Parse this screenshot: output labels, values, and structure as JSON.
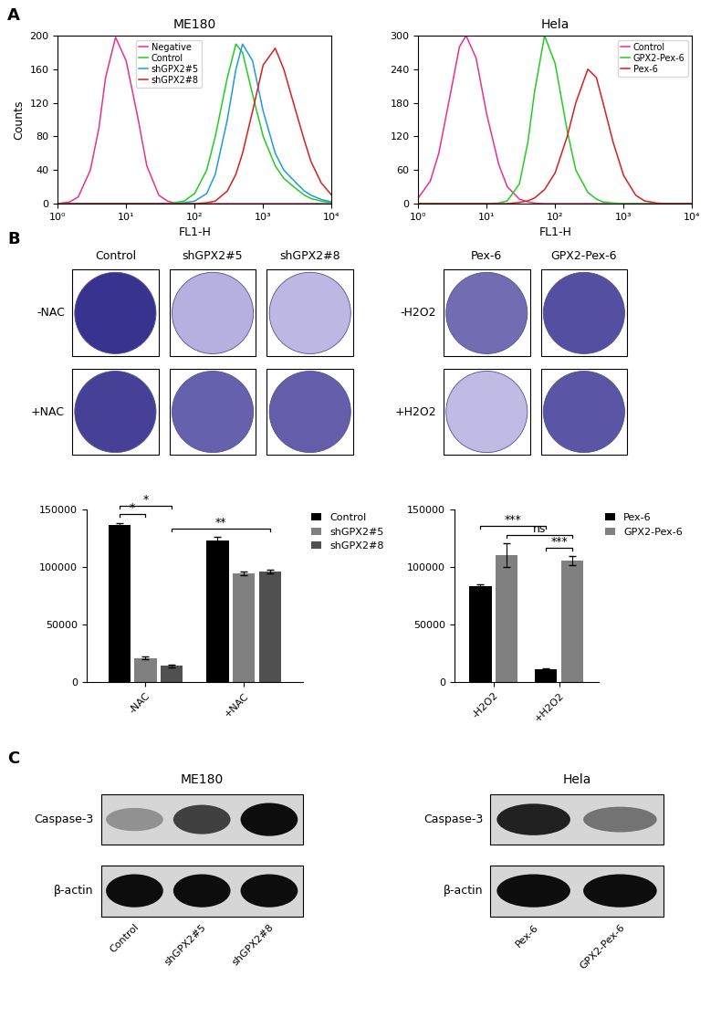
{
  "panels": [
    "A",
    "B",
    "C"
  ],
  "chart_data": [
    {
      "type": "line",
      "title": "ME180",
      "x_label": "FL1-H",
      "y_label": "Counts",
      "log": "x",
      "x": [
        1,
        1.5,
        2,
        3,
        4,
        5,
        7,
        10,
        15,
        20,
        30,
        40,
        50,
        70,
        100,
        150,
        200,
        300,
        400,
        500,
        700,
        1000,
        1500,
        2000,
        3000,
        4000,
        5000,
        7000,
        10000
      ],
      "series": [
        {
          "name": "Negative",
          "color": "#e8308f",
          "values": [
            0,
            2,
            8,
            40,
            90,
            150,
            198,
            170,
            100,
            45,
            10,
            3,
            1,
            0,
            0,
            0,
            0,
            0,
            0,
            0,
            0,
            0,
            0,
            0,
            0,
            0,
            0,
            0,
            0
          ]
        },
        {
          "name": "Control",
          "color": "#22cc22",
          "values": [
            0,
            0,
            0,
            0,
            0,
            0,
            0,
            0,
            0,
            0,
            0,
            0,
            1,
            3,
            12,
            40,
            80,
            150,
            190,
            180,
            130,
            80,
            45,
            30,
            18,
            10,
            6,
            3,
            1
          ]
        },
        {
          "name": "shGPX2#5",
          "color": "#1f9bd7",
          "values": [
            0,
            0,
            0,
            0,
            0,
            0,
            0,
            0,
            0,
            0,
            0,
            0,
            0,
            1,
            3,
            12,
            35,
            100,
            160,
            190,
            170,
            110,
            60,
            40,
            25,
            15,
            10,
            5,
            2
          ]
        },
        {
          "name": "shGPX2#8",
          "color": "#d81e1e",
          "values": [
            0,
            0,
            0,
            0,
            0,
            0,
            0,
            0,
            0,
            0,
            0,
            0,
            0,
            0,
            0,
            1,
            3,
            15,
            35,
            60,
            110,
            165,
            185,
            160,
            110,
            75,
            50,
            25,
            10
          ]
        }
      ],
      "xlim": [
        1,
        10000
      ],
      "xticks": [
        {
          "value": 1,
          "label": "10⁰"
        },
        {
          "value": 10,
          "label": "10¹"
        },
        {
          "value": 100,
          "label": "10²"
        },
        {
          "value": 1000,
          "label": "10³"
        },
        {
          "value": 10000,
          "label": "10⁴"
        }
      ],
      "ylim": [
        0,
        200
      ],
      "yticks": [
        0,
        40,
        80,
        120,
        160,
        200
      ],
      "legend": "upper left"
    },
    {
      "type": "line",
      "title": "Hela",
      "x_label": "FL1-H",
      "log": "x",
      "x": [
        1,
        1.5,
        2,
        3,
        4,
        5,
        7,
        10,
        15,
        20,
        30,
        40,
        50,
        70,
        100,
        150,
        200,
        300,
        400,
        500,
        700,
        1000,
        1500,
        2000,
        3000,
        4000,
        5000,
        7000,
        10000
      ],
      "series": [
        {
          "name": "Control",
          "color": "#e8308f",
          "values": [
            10,
            40,
            90,
            200,
            280,
            300,
            260,
            160,
            70,
            30,
            8,
            3,
            1,
            0,
            0,
            0,
            0,
            0,
            0,
            0,
            0,
            0,
            0,
            0,
            0,
            0,
            0,
            0,
            0
          ]
        },
        {
          "name": "GPX2-Pex-6",
          "color": "#22cc22",
          "values": [
            0,
            0,
            0,
            0,
            0,
            0,
            0,
            0,
            1,
            5,
            35,
            110,
            200,
            300,
            250,
            130,
            60,
            20,
            8,
            3,
            1,
            0,
            0,
            0,
            0,
            0,
            0,
            0,
            0
          ]
        },
        {
          "name": "Pex-6",
          "color": "#d81e1e",
          "values": [
            0,
            0,
            0,
            0,
            0,
            0,
            0,
            0,
            0,
            0,
            2,
            5,
            10,
            25,
            55,
            120,
            180,
            240,
            225,
            180,
            110,
            50,
            15,
            5,
            1,
            0,
            0,
            0,
            0
          ]
        }
      ],
      "xlim": [
        1,
        10000
      ],
      "xticks": [
        {
          "value": 1,
          "label": "10⁰"
        },
        {
          "value": 10,
          "label": "10¹"
        },
        {
          "value": 100,
          "label": "10²"
        },
        {
          "value": 1000,
          "label": "10³"
        },
        {
          "value": 10000,
          "label": "10⁴"
        }
      ],
      "ylim": [
        0,
        300
      ],
      "yticks": [
        0,
        60,
        120,
        180,
        240,
        300
      ],
      "legend": "upper right"
    },
    {
      "type": "bar",
      "categories": [
        "-NAC",
        "+NAC"
      ],
      "series": [
        {
          "name": "Control",
          "color": "#000000",
          "values": [
            136000,
            123000
          ],
          "errors": [
            2000,
            2500
          ]
        },
        {
          "name": "shGPX2#5",
          "color": "#808080",
          "values": [
            21000,
            94000
          ],
          "errors": [
            1500,
            1500
          ]
        },
        {
          "name": "shGPX2#8",
          "color": "#505050",
          "values": [
            14000,
            96000
          ],
          "errors": [
            1000,
            1500
          ]
        }
      ],
      "ylim": [
        0,
        150000
      ],
      "yticks": [
        0,
        50000,
        100000,
        150000
      ],
      "legend": "upper left",
      "annotations": [
        {
          "text": "**",
          "from": {
            "category": "-NAC",
            "series": "shGPX2#8"
          },
          "to": {
            "category": "+NAC",
            "series": "shGPX2#8"
          }
        },
        {
          "text": "*",
          "from": {
            "category": "-NAC",
            "series": "Control"
          },
          "to": {
            "category": "-NAC",
            "series": "shGPX2#5"
          }
        },
        {
          "text": "*",
          "from": {
            "category": "-NAC",
            "series": "Control"
          },
          "to": {
            "category": "-NAC",
            "series": "shGPX2#8"
          }
        }
      ]
    },
    {
      "type": "bar",
      "categories": [
        "-H2O2",
        "+H2O2"
      ],
      "series": [
        {
          "name": "Pex-6",
          "color": "#000000",
          "values": [
            83000,
            11000
          ],
          "errors": [
            2000,
            1000
          ]
        },
        {
          "name": "GPX2-Pex-6",
          "color": "#808080",
          "values": [
            110000,
            105000
          ],
          "errors": [
            10000,
            4000
          ]
        }
      ],
      "ylim": [
        0,
        150000
      ],
      "yticks": [
        0,
        50000,
        100000,
        150000
      ],
      "legend": "upper left",
      "annotations": [
        {
          "text": "***",
          "from": {
            "category": "+H2O2",
            "series": "Pex-6"
          },
          "to": {
            "category": "+H2O2",
            "series": "GPX2-Pex-6"
          }
        },
        {
          "text": "ns",
          "from": {
            "category": "-H2O2",
            "series": "GPX2-Pex-6"
          },
          "to": {
            "category": "+H2O2",
            "series": "GPX2-Pex-6"
          }
        },
        {
          "text": "***",
          "from": {
            "category": "-H2O2",
            "series": "Pex-6"
          },
          "to": {
            "category": "+H2O2",
            "series": "Pex-6"
          }
        }
      ]
    }
  ],
  "plates": [
    {
      "columns": [
        "Control",
        "shGPX2#5",
        "shGPX2#8"
      ],
      "rows": [
        "-NAC",
        "+NAC"
      ]
    },
    {
      "columns": [
        "Pex-6",
        "GPX2-Pex-6"
      ],
      "rows": [
        "-H2O2",
        "+H2O2"
      ]
    }
  ],
  "blots": [
    {
      "title": "ME180",
      "lanes": [
        "Control",
        "shGPX2#5",
        "shGPX2#8"
      ],
      "rows": [
        {
          "name": "Caspase-3",
          "intensity": [
            0.35,
            0.75,
            1.0
          ]
        },
        {
          "name": "β-actin",
          "intensity": [
            1.0,
            1.0,
            1.0
          ]
        }
      ]
    },
    {
      "title": "Hela",
      "lanes": [
        "Pex-6",
        "GPX2-Pex-6"
      ],
      "rows": [
        {
          "name": "Caspase-3",
          "intensity": [
            0.9,
            0.5
          ]
        },
        {
          "name": "β-actin",
          "intensity": [
            1.0,
            1.0
          ]
        }
      ]
    }
  ]
}
